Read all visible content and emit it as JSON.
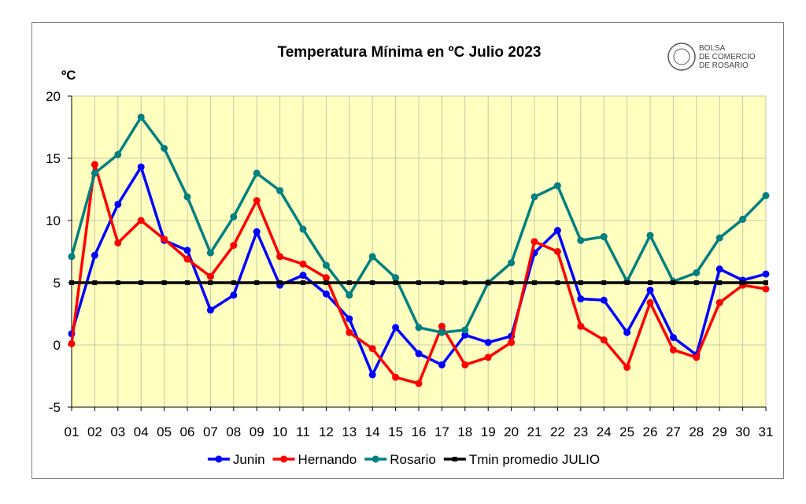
{
  "chart_data": {
    "type": "line",
    "title": "Temperatura Mínima en ºC Julio 2023",
    "y_label": "ºC",
    "logo": [
      "BOLSA",
      "DE COMERCIO",
      "DE ROSARIO"
    ],
    "categories": [
      "01",
      "02",
      "03",
      "04",
      "05",
      "06",
      "07",
      "08",
      "09",
      "10",
      "11",
      "12",
      "13",
      "14",
      "15",
      "16",
      "17",
      "18",
      "19",
      "20",
      "21",
      "22",
      "23",
      "24",
      "25",
      "26",
      "27",
      "28",
      "29",
      "30",
      "31"
    ],
    "ylim": [
      -5,
      20
    ],
    "yticks": [
      -5,
      0,
      5,
      10,
      15,
      20
    ],
    "grid": true,
    "series": [
      {
        "name": "Junin",
        "color": "#0000ff",
        "values": [
          0.9,
          7.2,
          11.3,
          14.3,
          8.4,
          7.6,
          2.8,
          4.0,
          9.1,
          4.8,
          5.6,
          4.1,
          2.1,
          -2.4,
          1.4,
          -0.7,
          -1.6,
          0.8,
          0.2,
          0.7,
          7.4,
          9.2,
          3.7,
          3.6,
          1.0,
          4.4,
          0.6,
          -0.8,
          6.1,
          5.2,
          5.7
        ]
      },
      {
        "name": "Hernando",
        "color": "#ff0000",
        "values": [
          0.1,
          14.5,
          8.2,
          10.0,
          8.5,
          6.9,
          5.5,
          8.0,
          11.6,
          7.1,
          6.5,
          5.4,
          1.0,
          -0.3,
          -2.6,
          -3.1,
          1.5,
          -1.6,
          -1.0,
          0.2,
          8.3,
          7.5,
          1.5,
          0.4,
          -1.8,
          3.4,
          -0.4,
          -1.0,
          3.4,
          4.8,
          4.5
        ]
      },
      {
        "name": "Rosario",
        "color": "#008080",
        "values": [
          7.1,
          13.8,
          15.3,
          18.3,
          15.8,
          11.9,
          7.4,
          10.3,
          13.8,
          12.4,
          9.3,
          6.4,
          4.0,
          7.1,
          5.4,
          1.4,
          1.0,
          1.2,
          5.0,
          6.6,
          11.9,
          12.8,
          8.4,
          8.7,
          5.1,
          8.8,
          5.1,
          5.8,
          8.6,
          10.1,
          12.0
        ]
      },
      {
        "name": "Tmin promedio JULIO",
        "color": "#000000",
        "values": [
          5,
          5,
          5,
          5,
          5,
          5,
          5,
          5,
          5,
          5,
          5,
          5,
          5,
          5,
          5,
          5,
          5,
          5,
          5,
          5,
          5,
          5,
          5,
          5,
          5,
          5,
          5,
          5,
          5,
          5,
          5
        ]
      }
    ]
  }
}
